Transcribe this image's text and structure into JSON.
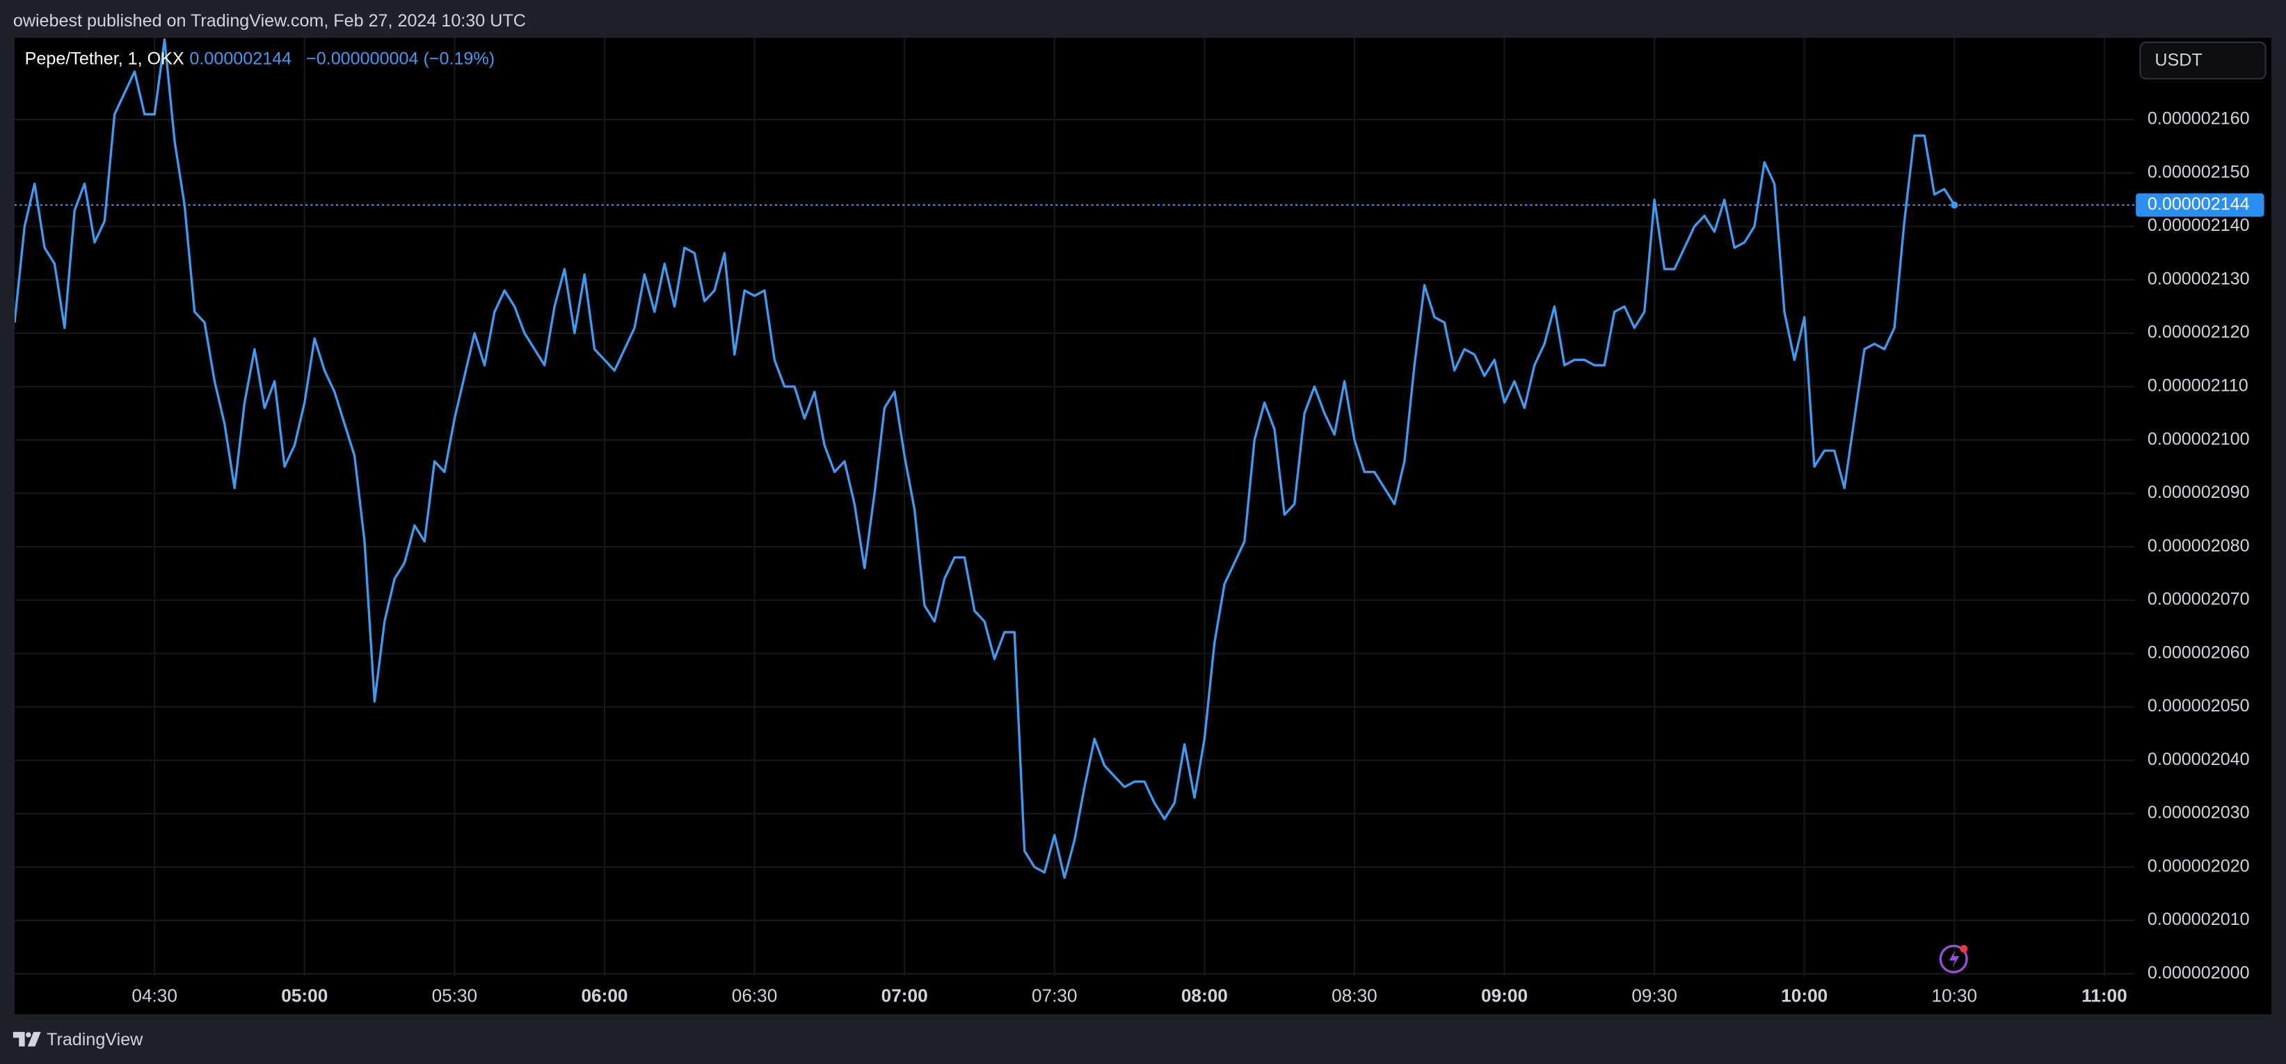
{
  "header": {
    "title": "owiebest published on TradingView.com, Feb 27, 2024 10:30 UTC"
  },
  "legend": {
    "symbol": "Pepe/Tether, 1, OKX",
    "price": "0.000002144",
    "change": "−0.000000004 (−0.19%)"
  },
  "currency": "USDT",
  "footer": {
    "brand": "TradingView"
  },
  "chart_data": {
    "type": "line",
    "grid": true,
    "last_price_label": "0.000002144",
    "xlim": [
      "04:02",
      "11:06"
    ],
    "xticks": [
      "04:30",
      "05:00",
      "05:30",
      "06:00",
      "06:30",
      "07:00",
      "07:30",
      "08:00",
      "08:30",
      "09:00",
      "09:30",
      "10:00",
      "10:30",
      "11:00"
    ],
    "ylim": [
      1.9995e-06,
      2.1753e-06
    ],
    "yticks": [
      {
        "value": 2e-06,
        "label": "0.000002000"
      },
      {
        "value": 2.01e-06,
        "label": "0.000002010"
      },
      {
        "value": 2.02e-06,
        "label": "0.000002020"
      },
      {
        "value": 2.03e-06,
        "label": "0.000002030"
      },
      {
        "value": 2.04e-06,
        "label": "0.000002040"
      },
      {
        "value": 2.05e-06,
        "label": "0.000002050"
      },
      {
        "value": 2.06e-06,
        "label": "0.000002060"
      },
      {
        "value": 2.07e-06,
        "label": "0.000002070"
      },
      {
        "value": 2.08e-06,
        "label": "0.000002080"
      },
      {
        "value": 2.09e-06,
        "label": "0.000002090"
      },
      {
        "value": 2.1e-06,
        "label": "0.000002100"
      },
      {
        "value": 2.11e-06,
        "label": "0.000002110"
      },
      {
        "value": 2.12e-06,
        "label": "0.000002120"
      },
      {
        "value": 2.13e-06,
        "label": "0.000002130"
      },
      {
        "value": 2.14e-06,
        "label": "0.000002140"
      },
      {
        "value": 2.15e-06,
        "label": "0.000002150"
      },
      {
        "value": 2.16e-06,
        "label": "0.000002160"
      }
    ],
    "x": [
      "04:02",
      "04:04",
      "04:06",
      "04:08",
      "04:10",
      "04:12",
      "04:14",
      "04:16",
      "04:18",
      "04:20",
      "04:22",
      "04:24",
      "04:26",
      "04:28",
      "04:30",
      "04:32",
      "04:34",
      "04:36",
      "04:38",
      "04:40",
      "04:42",
      "04:44",
      "04:46",
      "04:48",
      "04:50",
      "04:52",
      "04:54",
      "04:56",
      "04:58",
      "05:00",
      "05:02",
      "05:04",
      "05:06",
      "05:08",
      "05:10",
      "05:12",
      "05:14",
      "05:16",
      "05:18",
      "05:20",
      "05:22",
      "05:24",
      "05:26",
      "05:28",
      "05:30",
      "05:32",
      "05:34",
      "05:36",
      "05:38",
      "05:40",
      "05:42",
      "05:44",
      "05:46",
      "05:48",
      "05:50",
      "05:52",
      "05:54",
      "05:56",
      "05:58",
      "06:00",
      "06:02",
      "06:04",
      "06:06",
      "06:08",
      "06:10",
      "06:12",
      "06:14",
      "06:16",
      "06:18",
      "06:20",
      "06:22",
      "06:24",
      "06:26",
      "06:28",
      "06:30",
      "06:32",
      "06:34",
      "06:36",
      "06:38",
      "06:40",
      "06:42",
      "06:44",
      "06:46",
      "06:48",
      "06:50",
      "06:52",
      "06:54",
      "06:56",
      "06:58",
      "07:00",
      "07:02",
      "07:04",
      "07:06",
      "07:08",
      "07:10",
      "07:12",
      "07:14",
      "07:16",
      "07:18",
      "07:20",
      "07:22",
      "07:24",
      "07:26",
      "07:28",
      "07:30",
      "07:32",
      "07:34",
      "07:36",
      "07:38",
      "07:40",
      "07:42",
      "07:44",
      "07:46",
      "07:48",
      "07:50",
      "07:52",
      "07:54",
      "07:56",
      "07:58",
      "08:00",
      "08:02",
      "08:04",
      "08:06",
      "08:08",
      "08:10",
      "08:12",
      "08:14",
      "08:16",
      "08:18",
      "08:20",
      "08:22",
      "08:24",
      "08:26",
      "08:28",
      "08:30",
      "08:32",
      "08:34",
      "08:36",
      "08:38",
      "08:40",
      "08:42",
      "08:44",
      "08:46",
      "08:48",
      "08:50",
      "08:52",
      "08:54",
      "08:56",
      "08:58",
      "09:00",
      "09:02",
      "09:04",
      "09:06",
      "09:08",
      "09:10",
      "09:12",
      "09:14",
      "09:16",
      "09:18",
      "09:20",
      "09:22",
      "09:24",
      "09:26",
      "09:28",
      "09:30",
      "09:32",
      "09:34",
      "09:36",
      "09:38",
      "09:40",
      "09:42",
      "09:44",
      "09:46",
      "09:48",
      "09:50",
      "09:52",
      "09:54",
      "09:56",
      "09:58",
      "10:00",
      "10:02",
      "10:04",
      "10:06",
      "10:08",
      "10:10",
      "10:12",
      "10:14",
      "10:16",
      "10:18",
      "10:20",
      "10:22",
      "10:24",
      "10:26",
      "10:28",
      "10:30"
    ],
    "series": [
      {
        "name": "Pepe/Tether",
        "color": "#3d9bf2",
        "values": [
          2.122e-06,
          2.14e-06,
          2.148e-06,
          2.136e-06,
          2.133e-06,
          2.121e-06,
          2.143e-06,
          2.148e-06,
          2.137e-06,
          2.141e-06,
          2.161e-06,
          2.165e-06,
          2.169e-06,
          2.161e-06,
          2.161e-06,
          2.175e-06,
          2.156e-06,
          2.144e-06,
          2.124e-06,
          2.122e-06,
          2.111e-06,
          2.103e-06,
          2.091e-06,
          2.107e-06,
          2.117e-06,
          2.106e-06,
          2.111e-06,
          2.095e-06,
          2.099e-06,
          2.107e-06,
          2.119e-06,
          2.113e-06,
          2.109e-06,
          2.103e-06,
          2.097e-06,
          2.081e-06,
          2.051e-06,
          2.066e-06,
          2.074e-06,
          2.077e-06,
          2.084e-06,
          2.081e-06,
          2.096e-06,
          2.094e-06,
          2.104e-06,
          2.112e-06,
          2.12e-06,
          2.114e-06,
          2.124e-06,
          2.128e-06,
          2.125e-06,
          2.12e-06,
          2.117e-06,
          2.114e-06,
          2.125e-06,
          2.132e-06,
          2.12e-06,
          2.131e-06,
          2.117e-06,
          2.115e-06,
          2.113e-06,
          2.117e-06,
          2.121e-06,
          2.131e-06,
          2.124e-06,
          2.133e-06,
          2.125e-06,
          2.136e-06,
          2.135e-06,
          2.126e-06,
          2.128e-06,
          2.135e-06,
          2.116e-06,
          2.128e-06,
          2.127e-06,
          2.128e-06,
          2.115e-06,
          2.11e-06,
          2.11e-06,
          2.104e-06,
          2.109e-06,
          2.099e-06,
          2.094e-06,
          2.096e-06,
          2.088e-06,
          2.076e-06,
          2.09e-06,
          2.106e-06,
          2.109e-06,
          2.097e-06,
          2.087e-06,
          2.069e-06,
          2.066e-06,
          2.074e-06,
          2.078e-06,
          2.078e-06,
          2.068e-06,
          2.066e-06,
          2.059e-06,
          2.064e-06,
          2.064e-06,
          2.023e-06,
          2.02e-06,
          2.019e-06,
          2.026e-06,
          2.018e-06,
          2.025e-06,
          2.035e-06,
          2.044e-06,
          2.039e-06,
          2.037e-06,
          2.035e-06,
          2.036e-06,
          2.036e-06,
          2.032e-06,
          2.029e-06,
          2.032e-06,
          2.043e-06,
          2.033e-06,
          2.044e-06,
          2.062e-06,
          2.073e-06,
          2.077e-06,
          2.081e-06,
          2.1e-06,
          2.107e-06,
          2.102e-06,
          2.086e-06,
          2.088e-06,
          2.105e-06,
          2.11e-06,
          2.105e-06,
          2.101e-06,
          2.111e-06,
          2.1e-06,
          2.094e-06,
          2.094e-06,
          2.091e-06,
          2.088e-06,
          2.096e-06,
          2.114e-06,
          2.129e-06,
          2.123e-06,
          2.122e-06,
          2.113e-06,
          2.117e-06,
          2.116e-06,
          2.112e-06,
          2.115e-06,
          2.107e-06,
          2.111e-06,
          2.106e-06,
          2.114e-06,
          2.118e-06,
          2.125e-06,
          2.114e-06,
          2.115e-06,
          2.115e-06,
          2.114e-06,
          2.114e-06,
          2.124e-06,
          2.125e-06,
          2.121e-06,
          2.124e-06,
          2.145e-06,
          2.132e-06,
          2.132e-06,
          2.136e-06,
          2.14e-06,
          2.142e-06,
          2.139e-06,
          2.145e-06,
          2.136e-06,
          2.137e-06,
          2.14e-06,
          2.152e-06,
          2.148e-06,
          2.124e-06,
          2.115e-06,
          2.123e-06,
          2.095e-06,
          2.098e-06,
          2.098e-06,
          2.091e-06,
          2.104e-06,
          2.117e-06,
          2.118e-06,
          2.117e-06,
          2.121e-06,
          2.141e-06,
          2.157e-06,
          2.157e-06,
          2.146e-06,
          2.147e-06,
          2.144e-06
        ]
      }
    ]
  }
}
